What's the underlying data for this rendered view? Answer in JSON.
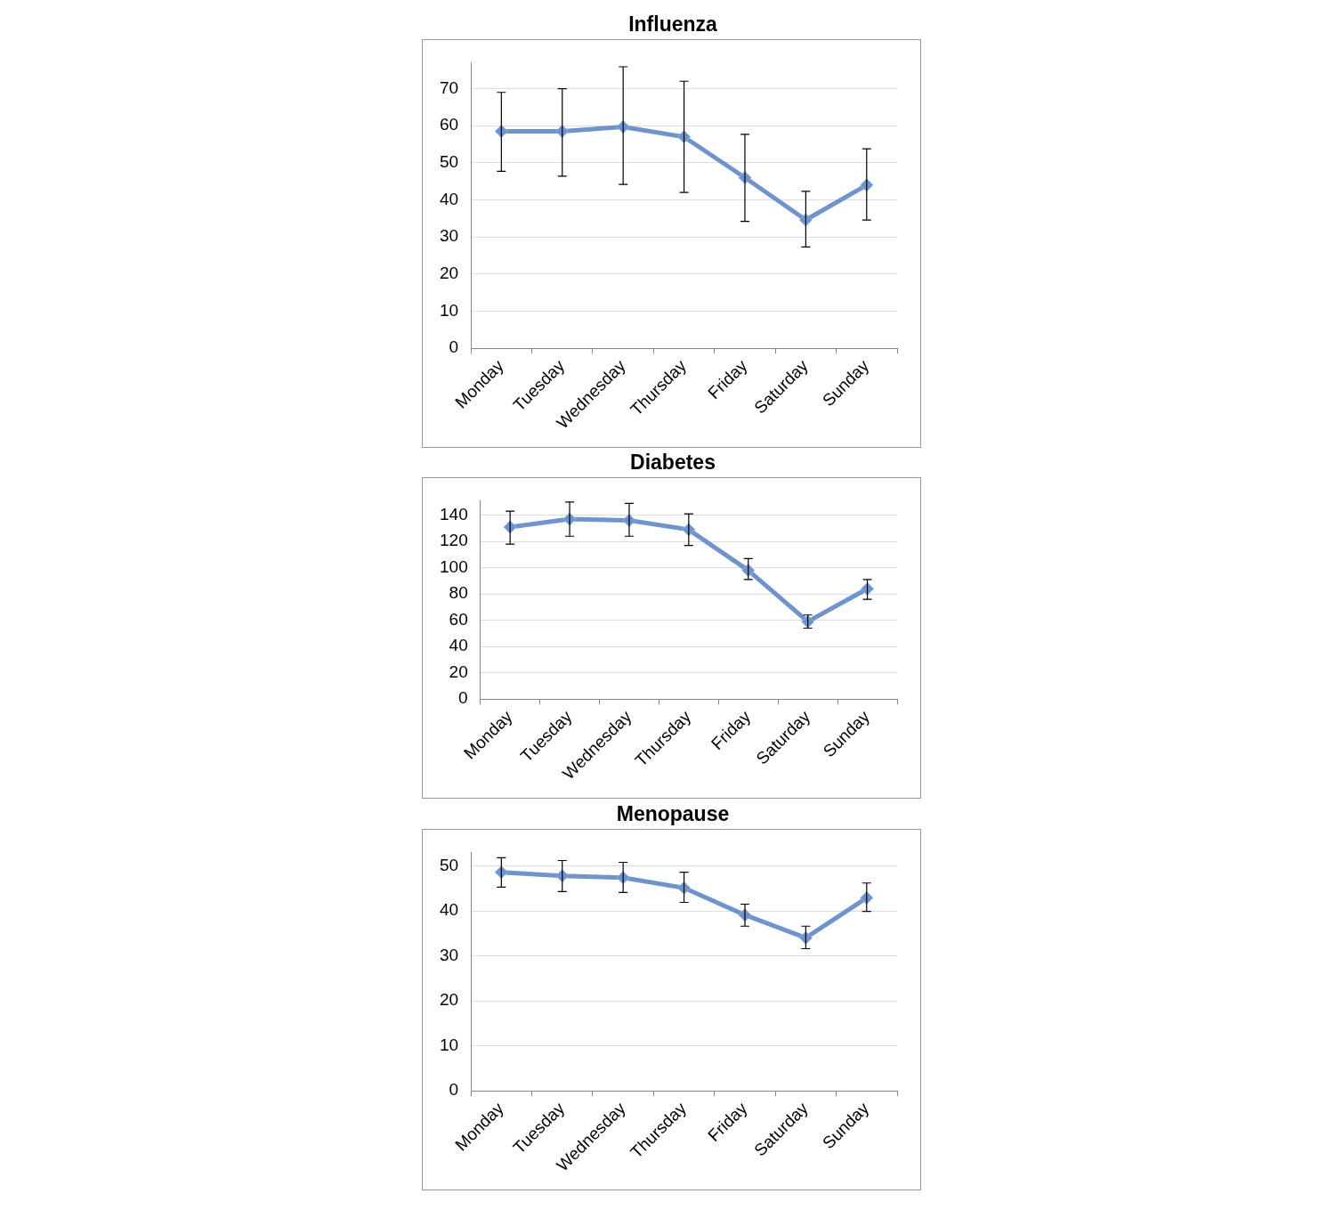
{
  "chart_data": [
    {
      "type": "line",
      "title": "Influenza",
      "categories": [
        "Monday",
        "Tuesday",
        "Wednesday",
        "Thursday",
        "Friday",
        "Saturday",
        "Sunday"
      ],
      "series": [
        {
          "color": "#6f93cc",
          "values": [
            58.5,
            58.5,
            59.7,
            57,
            46,
            34.6,
            44
          ],
          "errors": [
            [
              47.7,
              69
            ],
            [
              46.4,
              70
            ],
            [
              44.2,
              75.9
            ],
            [
              42,
              72
            ],
            [
              34.2,
              57.7
            ],
            [
              27.3,
              42.3
            ],
            [
              34.6,
              53.8
            ]
          ]
        }
      ],
      "ylim": [
        0,
        77
      ],
      "yticks": [
        0,
        10,
        20,
        30,
        40,
        50,
        60,
        70
      ],
      "grid": "y",
      "legend": false,
      "marker": "diamond",
      "line_style": "solid"
    },
    {
      "type": "line",
      "title": "Diabetes",
      "categories": [
        "Monday",
        "Tuesday",
        "Wednesday",
        "Thursday",
        "Friday",
        "Saturday",
        "Sunday"
      ],
      "series": [
        {
          "color": "#6f93cc",
          "values": [
            131,
            137,
            136,
            129,
            98,
            59,
            84
          ],
          "errors": [
            [
              118,
              143
            ],
            [
              124,
              150
            ],
            [
              124,
              149
            ],
            [
              117,
              141
            ],
            [
              91,
              107
            ],
            [
              54,
              64
            ],
            [
              76,
              91
            ]
          ]
        }
      ],
      "ylim": [
        0,
        151
      ],
      "yticks": [
        0,
        20,
        40,
        60,
        80,
        100,
        120,
        140
      ],
      "grid": "y",
      "legend": false,
      "marker": "diamond",
      "line_style": "solid"
    },
    {
      "type": "line",
      "title": "Menopause",
      "categories": [
        "Monday",
        "Tuesday",
        "Wednesday",
        "Thursday",
        "Friday",
        "Saturday",
        "Sunday"
      ],
      "series": [
        {
          "color": "#6f93cc",
          "values": [
            48.6,
            47.8,
            47.4,
            45.1,
            39.1,
            34,
            42.9
          ],
          "errors": [
            [
              45.3,
              51.8
            ],
            [
              44.3,
              51.2
            ],
            [
              44.1,
              50.8
            ],
            [
              41.9,
              48.6
            ],
            [
              36.6,
              41.5
            ],
            [
              31.6,
              36.6
            ],
            [
              39.9,
              46.2
            ]
          ]
        }
      ],
      "ylim": [
        0,
        53
      ],
      "yticks": [
        0,
        10,
        20,
        30,
        40,
        50
      ],
      "grid": "y",
      "legend": false,
      "marker": "diamond",
      "line_style": "solid"
    }
  ]
}
